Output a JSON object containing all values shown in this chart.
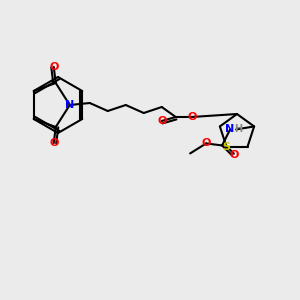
{
  "bg_color": "#ebebeb",
  "bond_color": "#000000",
  "bond_lw": 1.5,
  "atom_colors": {
    "O": "#ff0000",
    "N": "#0000ff",
    "S": "#cccc00",
    "H": "#888888",
    "C": "#000000"
  },
  "font_size": 8,
  "font_size_small": 7
}
